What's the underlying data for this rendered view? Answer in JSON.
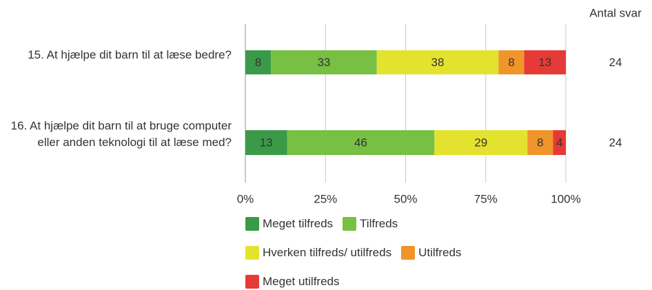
{
  "chart_data": {
    "type": "stacked_barh",
    "categories": [
      "15. At hjælpe dit barn til at læse bedre?",
      "16. At hjælpe dit barn til at bruge computer eller anden teknologi til at læse med?"
    ],
    "series": [
      {
        "name": "Meget tilfreds",
        "color": "#3a9a48",
        "values": [
          8,
          13
        ]
      },
      {
        "name": "Tilfreds",
        "color": "#77c044",
        "values": [
          33,
          46
        ]
      },
      {
        "name": "Hverken tilfreds/ utilfreds",
        "color": "#e3e32f",
        "values": [
          38,
          29
        ]
      },
      {
        "name": "Utilfreds",
        "color": "#f0952a",
        "values": [
          8,
          8
        ]
      },
      {
        "name": "Meget utilfreds",
        "color": "#e63a36",
        "values": [
          13,
          4
        ]
      }
    ],
    "count_label": "Antal svar",
    "counts": [
      24,
      24
    ],
    "xlim": [
      0,
      100
    ],
    "xticks": [
      {
        "value": 0,
        "label": "0%"
      },
      {
        "value": 25,
        "label": "25%"
      },
      {
        "value": 50,
        "label": "50%"
      },
      {
        "value": 75,
        "label": "75%"
      },
      {
        "value": 100,
        "label": "100%"
      }
    ],
    "grid": true
  }
}
